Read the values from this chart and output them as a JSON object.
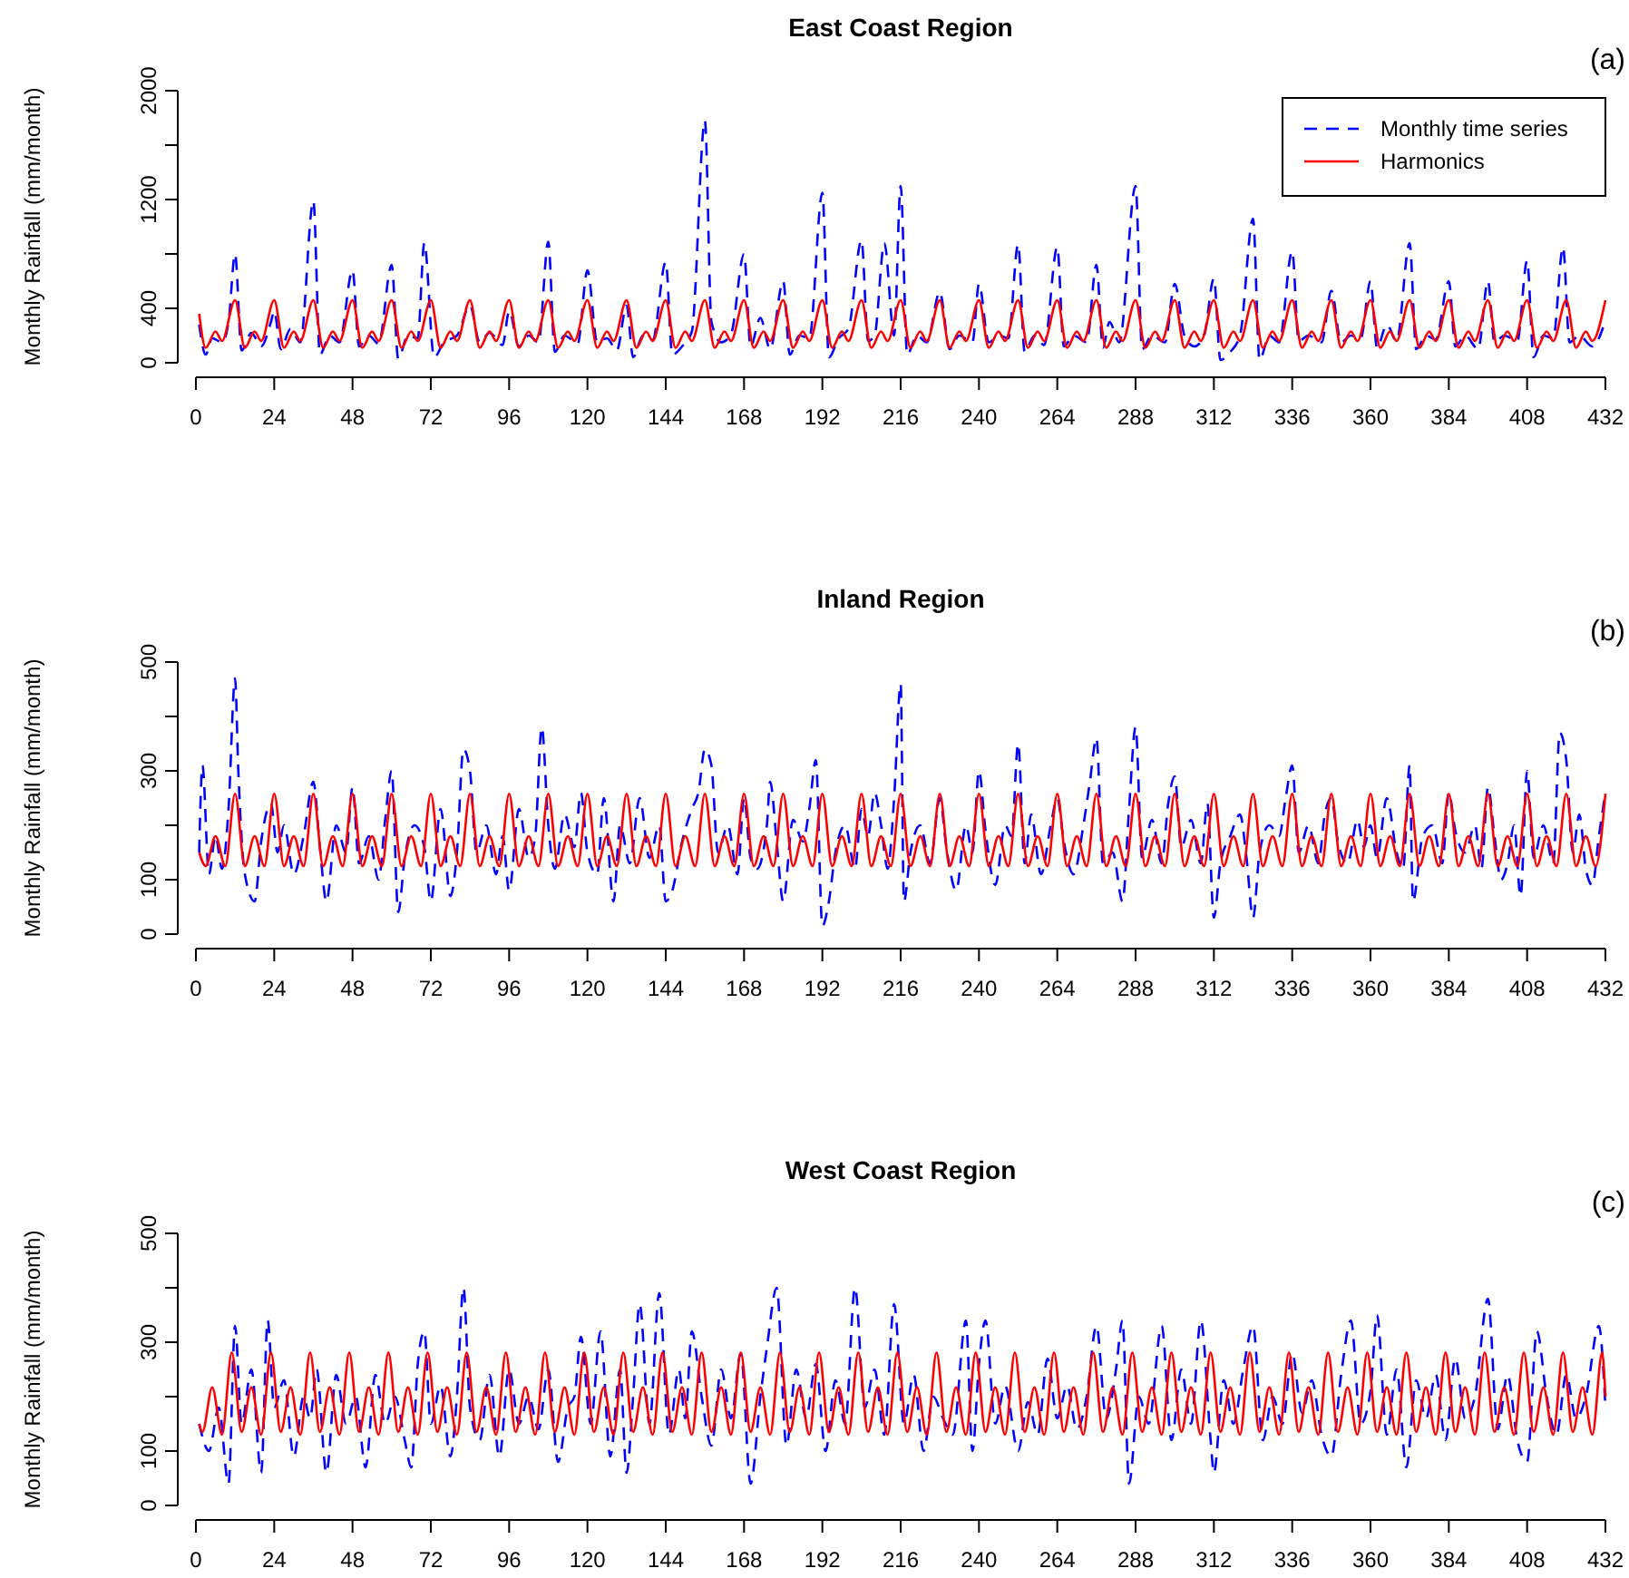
{
  "chart_data": [
    {
      "type": "line",
      "title": "East Coast Region",
      "ylabel": "Monthly Rainfall (mm/month)",
      "annotations": [
        "(a)"
      ],
      "xlim": [
        0,
        432
      ],
      "xticks": [
        0,
        24,
        48,
        72,
        96,
        120,
        144,
        168,
        192,
        216,
        240,
        264,
        288,
        312,
        336,
        360,
        384,
        408,
        432
      ],
      "ylim": [
        0,
        2000
      ],
      "yticks": [
        0,
        400,
        {
          "value": 800,
          "label": null
        },
        1200,
        {
          "value": 1600,
          "label": null
        },
        2000
      ],
      "legend": "top right",
      "series": [
        {
          "name": "Monthly time series",
          "color": "#0000ff",
          "line_style": "dashed",
          "x": [
            1,
            3,
            5,
            8,
            10,
            12,
            14,
            17,
            20,
            23,
            24,
            26,
            29,
            32,
            36,
            38,
            41,
            44,
            48,
            50,
            53,
            56,
            60,
            62,
            65,
            68,
            70,
            73,
            76,
            80,
            84,
            87,
            90,
            94,
            96,
            99,
            102,
            105,
            108,
            110,
            113,
            117,
            120,
            123,
            126,
            129,
            132,
            134,
            137,
            140,
            144,
            146,
            149,
            152,
            156,
            158,
            161,
            164,
            168,
            170,
            173,
            176,
            180,
            182,
            185,
            188,
            192,
            194,
            197,
            200,
            204,
            206,
            208,
            211,
            214,
            216,
            218,
            221,
            224,
            228,
            231,
            234,
            238,
            240,
            243,
            246,
            249,
            252,
            254,
            257,
            260,
            264,
            266,
            269,
            273,
            276,
            278,
            280,
            283,
            288,
            290,
            293,
            297,
            300,
            303,
            306,
            309,
            312,
            314,
            317,
            320,
            324,
            326,
            329,
            332,
            336,
            338,
            341,
            345,
            348,
            351,
            354,
            357,
            360,
            362,
            365,
            368,
            372,
            374,
            377,
            380,
            384,
            386,
            389,
            393,
            396,
            398,
            401,
            405,
            408,
            410,
            413,
            416,
            419,
            421,
            424,
            428,
            432
          ],
          "values": [
            280,
            60,
            180,
            150,
            300,
            800,
            90,
            220,
            120,
            300,
            380,
            100,
            250,
            150,
            1190,
            60,
            200,
            150,
            680,
            120,
            200,
            140,
            720,
            30,
            200,
            180,
            880,
            40,
            150,
            200,
            420,
            150,
            220,
            130,
            380,
            120,
            200,
            150,
            890,
            80,
            200,
            140,
            680,
            150,
            180,
            90,
            420,
            40,
            200,
            170,
            740,
            60,
            120,
            230,
            1780,
            300,
            150,
            210,
            800,
            120,
            330,
            100,
            600,
            60,
            200,
            180,
            1250,
            40,
            180,
            250,
            900,
            160,
            200,
            880,
            200,
            1300,
            60,
            200,
            150,
            520,
            100,
            200,
            150,
            580,
            150,
            200,
            180,
            870,
            80,
            200,
            130,
            850,
            120,
            200,
            150,
            720,
            110,
            300,
            150,
            1300,
            100,
            200,
            150,
            580,
            200,
            120,
            200,
            620,
            20,
            80,
            200,
            1060,
            20,
            200,
            150,
            820,
            160,
            200,
            150,
            530,
            150,
            200,
            180,
            600,
            110,
            280,
            160,
            880,
            100,
            200,
            170,
            600,
            120,
            200,
            100,
            600,
            150,
            200,
            160,
            750,
            40,
            200,
            180,
            850,
            150,
            200,
            120,
            310
          ]
        },
        {
          "name": "Harmonics",
          "color": "#ff0000",
          "line_style": "solid",
          "x": [
            1,
            3,
            6,
            8,
            12,
            15,
            18,
            20,
            24,
            27,
            30,
            32,
            36,
            39,
            42,
            44,
            48,
            51,
            54,
            56,
            60,
            63,
            66,
            68,
            72,
            75,
            78,
            80,
            84,
            87,
            90,
            92,
            96,
            99,
            102,
            104,
            108,
            111,
            114,
            116,
            120,
            123,
            126,
            128,
            132,
            135,
            138,
            140,
            144,
            147,
            150,
            152,
            156,
            159,
            162,
            164,
            168,
            171,
            174,
            176,
            180,
            183,
            186,
            188,
            192,
            195,
            198,
            200,
            204,
            207,
            210,
            212,
            216,
            219,
            222,
            224,
            228,
            231,
            234,
            236,
            240,
            243,
            246,
            248,
            252,
            255,
            258,
            260,
            264,
            267,
            270,
            272,
            276,
            279,
            282,
            284,
            288,
            291,
            294,
            296,
            300,
            303,
            306,
            308,
            312,
            315,
            318,
            320,
            324,
            327,
            330,
            332,
            336,
            339,
            342,
            344,
            348,
            351,
            354,
            356,
            360,
            363,
            366,
            368,
            372,
            375,
            378,
            380,
            384,
            387,
            390,
            392,
            396,
            399,
            402,
            404,
            408,
            411,
            414,
            416,
            420,
            423,
            426,
            428,
            432
          ],
          "values": [
            360,
            110,
            230,
            160,
            460,
            110,
            230,
            160,
            460,
            110,
            230,
            160,
            460,
            110,
            230,
            160,
            460,
            110,
            230,
            160,
            460,
            110,
            230,
            160,
            460,
            110,
            230,
            160,
            460,
            110,
            230,
            160,
            460,
            110,
            230,
            160,
            460,
            110,
            230,
            160,
            460,
            110,
            230,
            160,
            460,
            110,
            230,
            160,
            460,
            110,
            230,
            160,
            460,
            110,
            230,
            160,
            460,
            110,
            230,
            160,
            460,
            110,
            230,
            160,
            460,
            110,
            230,
            160,
            460,
            110,
            230,
            160,
            460,
            110,
            230,
            160,
            460,
            110,
            230,
            160,
            460,
            110,
            230,
            160,
            460,
            110,
            230,
            160,
            460,
            110,
            230,
            160,
            460,
            110,
            230,
            160,
            460,
            110,
            230,
            160,
            460,
            110,
            230,
            160,
            460,
            110,
            230,
            160,
            460,
            110,
            230,
            160,
            460,
            110,
            230,
            160,
            460,
            110,
            230,
            160,
            460,
            110,
            230,
            160,
            460,
            110,
            230,
            160,
            460,
            110,
            230,
            160,
            460,
            110,
            230,
            160,
            460,
            110,
            230,
            160,
            460,
            110,
            230,
            160,
            460
          ]
        }
      ]
    },
    {
      "type": "line",
      "title": "Inland Region",
      "ylabel": "Monthly Rainfall (mm/month)",
      "annotations": [
        "(b)"
      ],
      "xlim": [
        0,
        432
      ],
      "xticks": [
        0,
        24,
        48,
        72,
        96,
        120,
        144,
        168,
        192,
        216,
        240,
        264,
        288,
        312,
        336,
        360,
        384,
        408,
        432
      ],
      "ylim": [
        0,
        500
      ],
      "yticks": [
        0,
        100,
        {
          "value": 200,
          "label": null
        },
        300,
        {
          "value": 400,
          "label": null
        },
        500
      ],
      "series": [
        {
          "color": "#0000ff",
          "line_style": "dashed",
          "x": [
            1,
            2,
            4,
            6,
            8,
            10,
            12,
            13,
            15,
            18,
            20,
            23,
            25,
            27,
            30,
            33,
            36,
            38,
            40,
            43,
            46,
            48,
            50,
            53,
            56,
            58,
            60,
            62,
            64,
            67,
            70,
            72,
            75,
            78,
            80,
            82,
            84,
            86,
            89,
            92,
            94,
            96,
            99,
            102,
            104,
            106,
            108,
            110,
            113,
            116,
            118,
            120,
            123,
            125,
            128,
            130,
            133,
            136,
            139,
            142,
            144,
            146,
            149,
            152,
            154,
            156,
            158,
            160,
            163,
            166,
            168,
            170,
            172,
            175,
            176,
            178,
            180,
            183,
            186,
            188,
            190,
            192,
            194,
            196,
            199,
            202,
            204,
            206,
            208,
            210,
            212,
            214,
            216,
            217,
            219,
            222,
            225,
            228,
            230,
            233,
            236,
            238,
            240,
            242,
            245,
            248,
            250,
            252,
            254,
            256,
            259,
            262,
            264,
            266,
            269,
            272,
            274,
            276,
            278,
            281,
            284,
            286,
            288,
            290,
            293,
            296,
            298,
            300,
            302,
            305,
            308,
            310,
            312,
            314,
            317,
            320,
            322,
            324,
            326,
            329,
            332,
            334,
            336,
            338,
            341,
            344,
            346,
            348,
            350,
            353,
            356,
            358,
            360,
            362,
            365,
            368,
            370,
            372,
            373,
            376,
            379,
            382,
            384,
            386,
            389,
            392,
            394,
            396,
            398,
            400,
            402,
            404,
            406,
            408,
            410,
            413,
            416,
            418,
            420,
            422,
            424,
            426,
            428,
            430,
            432
          ],
          "values": [
            150,
            310,
            110,
            180,
            120,
            230,
            470,
            300,
            110,
            60,
            170,
            240,
            150,
            200,
            110,
            180,
            280,
            160,
            60,
            200,
            150,
            270,
            130,
            180,
            100,
            210,
            300,
            40,
            140,
            200,
            160,
            60,
            230,
            70,
            150,
            340,
            300,
            150,
            200,
            110,
            180,
            80,
            230,
            140,
            180,
            380,
            200,
            120,
            220,
            160,
            260,
            150,
            110,
            250,
            60,
            200,
            130,
            250,
            140,
            200,
            60,
            80,
            170,
            230,
            260,
            340,
            310,
            150,
            200,
            110,
            250,
            140,
            120,
            200,
            280,
            170,
            60,
            210,
            170,
            230,
            320,
            15,
            60,
            150,
            200,
            120,
            230,
            180,
            260,
            200,
            120,
            250,
            460,
            60,
            150,
            200,
            130,
            250,
            160,
            80,
            200,
            150,
            300,
            190,
            90,
            200,
            180,
            350,
            130,
            220,
            110,
            200,
            250,
            170,
            110,
            200,
            280,
            360,
            130,
            150,
            60,
            230,
            380,
            140,
            210,
            130,
            240,
            290,
            160,
            210,
            130,
            240,
            30,
            130,
            180,
            220,
            140,
            30,
            150,
            200,
            180,
            250,
            310,
            150,
            200,
            130,
            220,
            250,
            170,
            130,
            210,
            160,
            200,
            140,
            250,
            150,
            120,
            310,
            60,
            180,
            200,
            130,
            260,
            190,
            150,
            200,
            120,
            270,
            180,
            100,
            130,
            200,
            70,
            300,
            140,
            200,
            130,
            370,
            320,
            150,
            220,
            120,
            90,
            180,
            260
          ]
        },
        {
          "color": "#ff0000",
          "line_style": "solid",
          "x": [
            1,
            3,
            6,
            9,
            12,
            15,
            18,
            21,
            24,
            27,
            30,
            33,
            36,
            39,
            42,
            45,
            48,
            51,
            54,
            57,
            60,
            63,
            66,
            69,
            72,
            75,
            78,
            81,
            84,
            87,
            90,
            93,
            96,
            99,
            102,
            105,
            108,
            111,
            114,
            117,
            120,
            123,
            126,
            129,
            132,
            135,
            138,
            141,
            144,
            147,
            150,
            153,
            156,
            159,
            162,
            165,
            168,
            171,
            174,
            177,
            180,
            183,
            186,
            189,
            192,
            195,
            198,
            201,
            204,
            207,
            210,
            213,
            216,
            219,
            222,
            225,
            228,
            231,
            234,
            237,
            240,
            243,
            246,
            249,
            252,
            255,
            258,
            261,
            264,
            267,
            270,
            273,
            276,
            279,
            282,
            285,
            288,
            291,
            294,
            297,
            300,
            303,
            306,
            309,
            312,
            315,
            318,
            321,
            324,
            327,
            330,
            333,
            336,
            339,
            342,
            345,
            348,
            351,
            354,
            357,
            360,
            363,
            366,
            369,
            372,
            375,
            378,
            381,
            384,
            387,
            390,
            393,
            396,
            399,
            402,
            405,
            408,
            411,
            414,
            417,
            420,
            423,
            426,
            429,
            432
          ],
          "values": [
            150,
            125,
            180,
            125,
            258,
            125,
            180,
            125,
            258,
            125,
            180,
            125,
            258,
            125,
            180,
            125,
            258,
            125,
            180,
            125,
            258,
            125,
            180,
            125,
            258,
            125,
            180,
            125,
            258,
            125,
            180,
            125,
            258,
            125,
            180,
            125,
            258,
            125,
            180,
            125,
            258,
            125,
            180,
            125,
            258,
            125,
            180,
            125,
            258,
            125,
            180,
            125,
            258,
            125,
            180,
            125,
            258,
            125,
            180,
            125,
            258,
            125,
            180,
            125,
            258,
            125,
            180,
            125,
            258,
            125,
            180,
            125,
            258,
            125,
            180,
            125,
            258,
            125,
            180,
            125,
            258,
            125,
            180,
            125,
            258,
            125,
            180,
            125,
            258,
            125,
            180,
            125,
            258,
            125,
            180,
            125,
            258,
            125,
            180,
            125,
            258,
            125,
            180,
            125,
            258,
            125,
            180,
            125,
            258,
            125,
            180,
            125,
            258,
            125,
            180,
            125,
            258,
            125,
            180,
            125,
            258,
            125,
            180,
            125,
            258,
            125,
            180,
            125,
            258,
            125,
            180,
            125,
            258,
            125,
            180,
            125,
            258,
            125,
            180,
            125,
            258,
            125,
            180,
            125,
            258
          ]
        }
      ]
    },
    {
      "type": "line",
      "title": "West Coast Region",
      "ylabel": "Monthly Rainfall (mm/month)",
      "annotations": [
        "(c)"
      ],
      "xlim": [
        0,
        432
      ],
      "xticks": [
        0,
        24,
        48,
        72,
        96,
        120,
        144,
        168,
        192,
        216,
        240,
        264,
        288,
        312,
        336,
        360,
        384,
        408,
        432
      ],
      "ylim": [
        0,
        500
      ],
      "yticks": [
        0,
        100,
        {
          "value": 200,
          "label": null
        },
        300,
        {
          "value": 400,
          "label": null
        },
        500
      ],
      "series": [
        {
          "color": "#0000ff",
          "line_style": "dashed",
          "x": [
            1,
            4,
            7,
            10,
            12,
            14,
            17,
            20,
            22,
            24,
            27,
            30,
            33,
            35,
            37,
            40,
            43,
            46,
            49,
            52,
            55,
            58,
            61,
            64,
            66,
            68,
            70,
            72,
            75,
            78,
            80,
            82,
            84,
            87,
            90,
            93,
            96,
            99,
            102,
            105,
            108,
            111,
            114,
            116,
            118,
            121,
            124,
            127,
            130,
            132,
            134,
            136,
            139,
            142,
            145,
            148,
            150,
            152,
            155,
            158,
            161,
            164,
            167,
            170,
            173,
            175,
            178,
            181,
            184,
            187,
            190,
            193,
            196,
            199,
            202,
            205,
            208,
            211,
            214,
            217,
            220,
            223,
            226,
            229,
            232,
            236,
            238,
            240,
            242,
            245,
            248,
            252,
            255,
            258,
            261,
            264,
            267,
            270,
            273,
            276,
            279,
            282,
            284,
            286,
            289,
            292,
            296,
            299,
            302,
            305,
            308,
            311,
            312,
            315,
            318,
            321,
            324,
            327,
            330,
            333,
            336,
            339,
            342,
            345,
            348,
            351,
            354,
            357,
            360,
            362,
            365,
            368,
            371,
            374,
            377,
            380,
            383,
            386,
            389,
            392,
            396,
            399,
            402,
            405,
            408,
            411,
            414,
            417,
            420,
            423,
            426,
            430,
            432
          ],
          "values": [
            150,
            100,
            180,
            40,
            330,
            150,
            250,
            60,
            340,
            180,
            230,
            90,
            200,
            160,
            250,
            60,
            240,
            150,
            200,
            70,
            240,
            150,
            200,
            120,
            70,
            260,
            320,
            150,
            220,
            90,
            200,
            400,
            180,
            120,
            240,
            90,
            250,
            150,
            200,
            140,
            250,
            80,
            180,
            200,
            310,
            150,
            320,
            90,
            250,
            60,
            200,
            370,
            150,
            390,
            130,
            250,
            160,
            320,
            200,
            110,
            250,
            160,
            280,
            40,
            200,
            290,
            400,
            110,
            250,
            160,
            260,
            100,
            230,
            150,
            400,
            180,
            250,
            130,
            370,
            150,
            240,
            100,
            200,
            160,
            130,
            340,
            100,
            260,
            340,
            150,
            220,
            100,
            190,
            130,
            270,
            160,
            220,
            140,
            200,
            330,
            160,
            250,
            340,
            40,
            200,
            150,
            330,
            120,
            250,
            150,
            340,
            120,
            60,
            230,
            150,
            250,
            330,
            120,
            200,
            150,
            280,
            170,
            230,
            130,
            90,
            240,
            340,
            150,
            210,
            350,
            130,
            250,
            70,
            230,
            160,
            240,
            120,
            270,
            160,
            200,
            380,
            140,
            240,
            120,
            80,
            320,
            200,
            130,
            240,
            160,
            200,
            330,
            180
          ]
        },
        {
          "color": "#ff0000",
          "line_style": "solid",
          "x": [
            1,
            2,
            5,
            8,
            11,
            14,
            17,
            20,
            23,
            26,
            29,
            32,
            35,
            38,
            41,
            44,
            47,
            50,
            53,
            56,
            59,
            62,
            65,
            68,
            71,
            74,
            77,
            80,
            83,
            86,
            89,
            92,
            95,
            98,
            101,
            104,
            107,
            110,
            113,
            116,
            119,
            122,
            125,
            128,
            131,
            134,
            137,
            140,
            143,
            146,
            149,
            152,
            155,
            158,
            161,
            164,
            167,
            170,
            173,
            176,
            179,
            182,
            185,
            188,
            191,
            194,
            197,
            200,
            203,
            206,
            209,
            212,
            215,
            218,
            221,
            224,
            227,
            230,
            233,
            236,
            239,
            242,
            245,
            248,
            251,
            254,
            257,
            260,
            263,
            266,
            269,
            272,
            275,
            278,
            281,
            284,
            287,
            290,
            293,
            296,
            299,
            302,
            305,
            308,
            311,
            314,
            317,
            320,
            323,
            326,
            329,
            332,
            335,
            338,
            341,
            344,
            347,
            350,
            353,
            356,
            359,
            362,
            365,
            368,
            371,
            374,
            377,
            380,
            383,
            386,
            389,
            392,
            395,
            398,
            401,
            404,
            407,
            410,
            413,
            416,
            419,
            422,
            425,
            428,
            431,
            432
          ],
          "values": [
            150,
            135,
            217,
            130,
            281,
            135,
            217,
            130,
            281,
            135,
            217,
            130,
            281,
            135,
            217,
            130,
            281,
            135,
            217,
            130,
            281,
            135,
            217,
            130,
            281,
            135,
            217,
            130,
            281,
            135,
            217,
            130,
            281,
            135,
            217,
            130,
            281,
            135,
            217,
            130,
            281,
            135,
            217,
            130,
            281,
            135,
            217,
            130,
            281,
            135,
            217,
            130,
            281,
            135,
            217,
            130,
            281,
            135,
            217,
            130,
            281,
            135,
            217,
            130,
            281,
            135,
            217,
            130,
            281,
            135,
            217,
            130,
            281,
            135,
            217,
            130,
            281,
            135,
            217,
            130,
            281,
            135,
            217,
            130,
            281,
            135,
            217,
            130,
            281,
            135,
            217,
            130,
            281,
            135,
            217,
            130,
            281,
            135,
            217,
            130,
            281,
            135,
            217,
            130,
            281,
            135,
            217,
            130,
            281,
            135,
            217,
            130,
            281,
            135,
            217,
            130,
            281,
            135,
            217,
            130,
            281,
            135,
            217,
            130,
            281,
            135,
            217,
            130,
            281,
            135,
            217,
            130,
            281,
            135,
            217,
            130,
            281,
            135,
            217,
            130,
            281,
            135,
            217,
            130,
            281,
            200
          ]
        }
      ]
    }
  ]
}
